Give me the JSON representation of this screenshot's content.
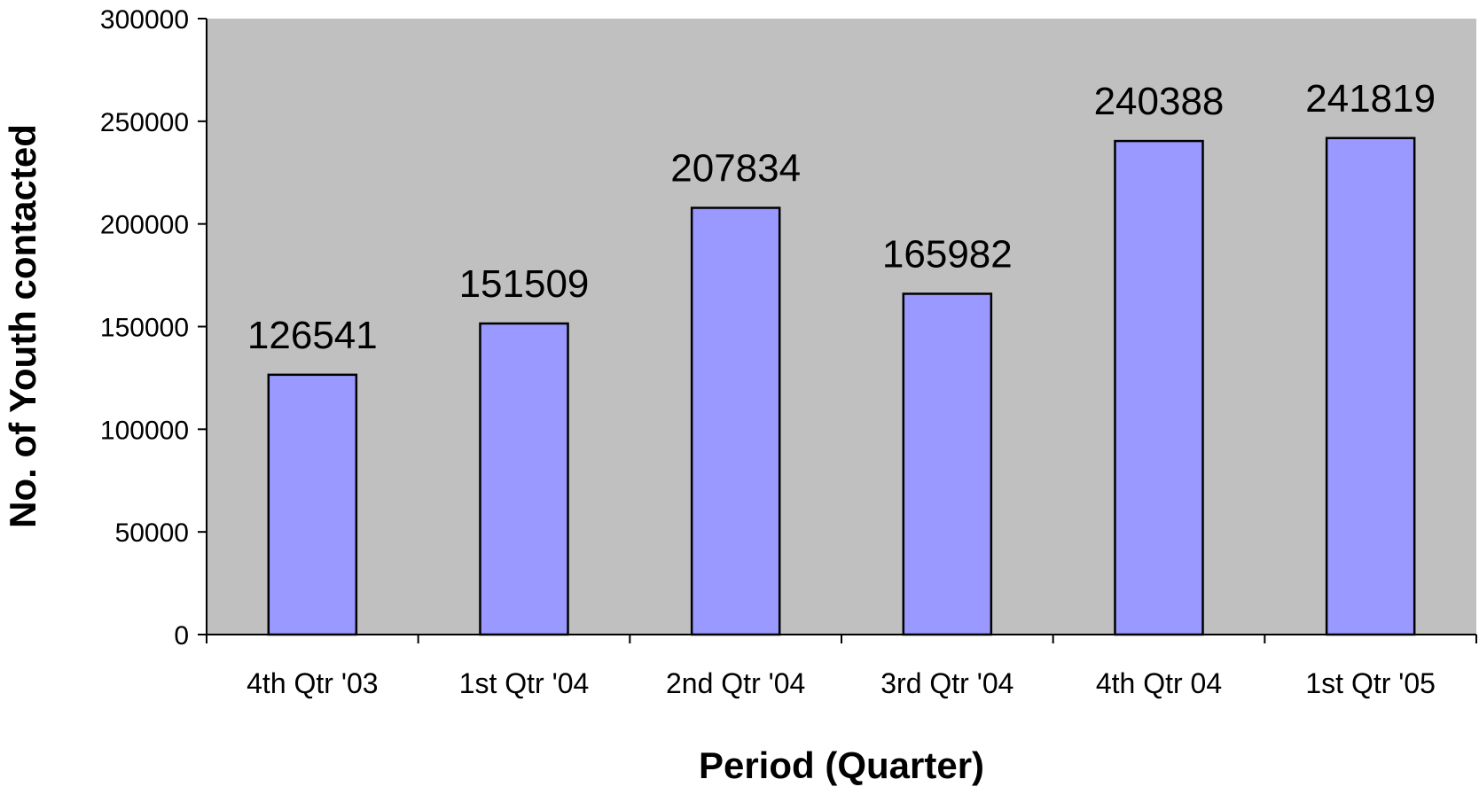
{
  "chart_data": {
    "type": "bar",
    "categories": [
      "4th Qtr '03",
      "1st Qtr '04",
      "2nd Qtr '04",
      "3rd Qtr '04",
      "4th Qtr 04",
      "1st Qtr '05"
    ],
    "values": [
      126541,
      151509,
      207834,
      165982,
      240388,
      241819
    ],
    "data_labels": [
      "126541",
      "151509",
      "207834",
      "165982",
      "240388",
      "241819"
    ],
    "title": "",
    "xlabel": "Period (Quarter)",
    "ylabel": "No. of Youth contacted",
    "ylim": [
      0,
      300000
    ],
    "yticks": [
      0,
      50000,
      100000,
      150000,
      200000,
      250000,
      300000
    ],
    "ytick_labels": [
      "0",
      "50000",
      "100000",
      "150000",
      "200000",
      "250000",
      "300000"
    ],
    "grid": false,
    "legend": "none",
    "colors": {
      "bar_fill": "#9999ff",
      "bar_stroke": "#000000",
      "plot_background": "#c0c0c0"
    }
  }
}
